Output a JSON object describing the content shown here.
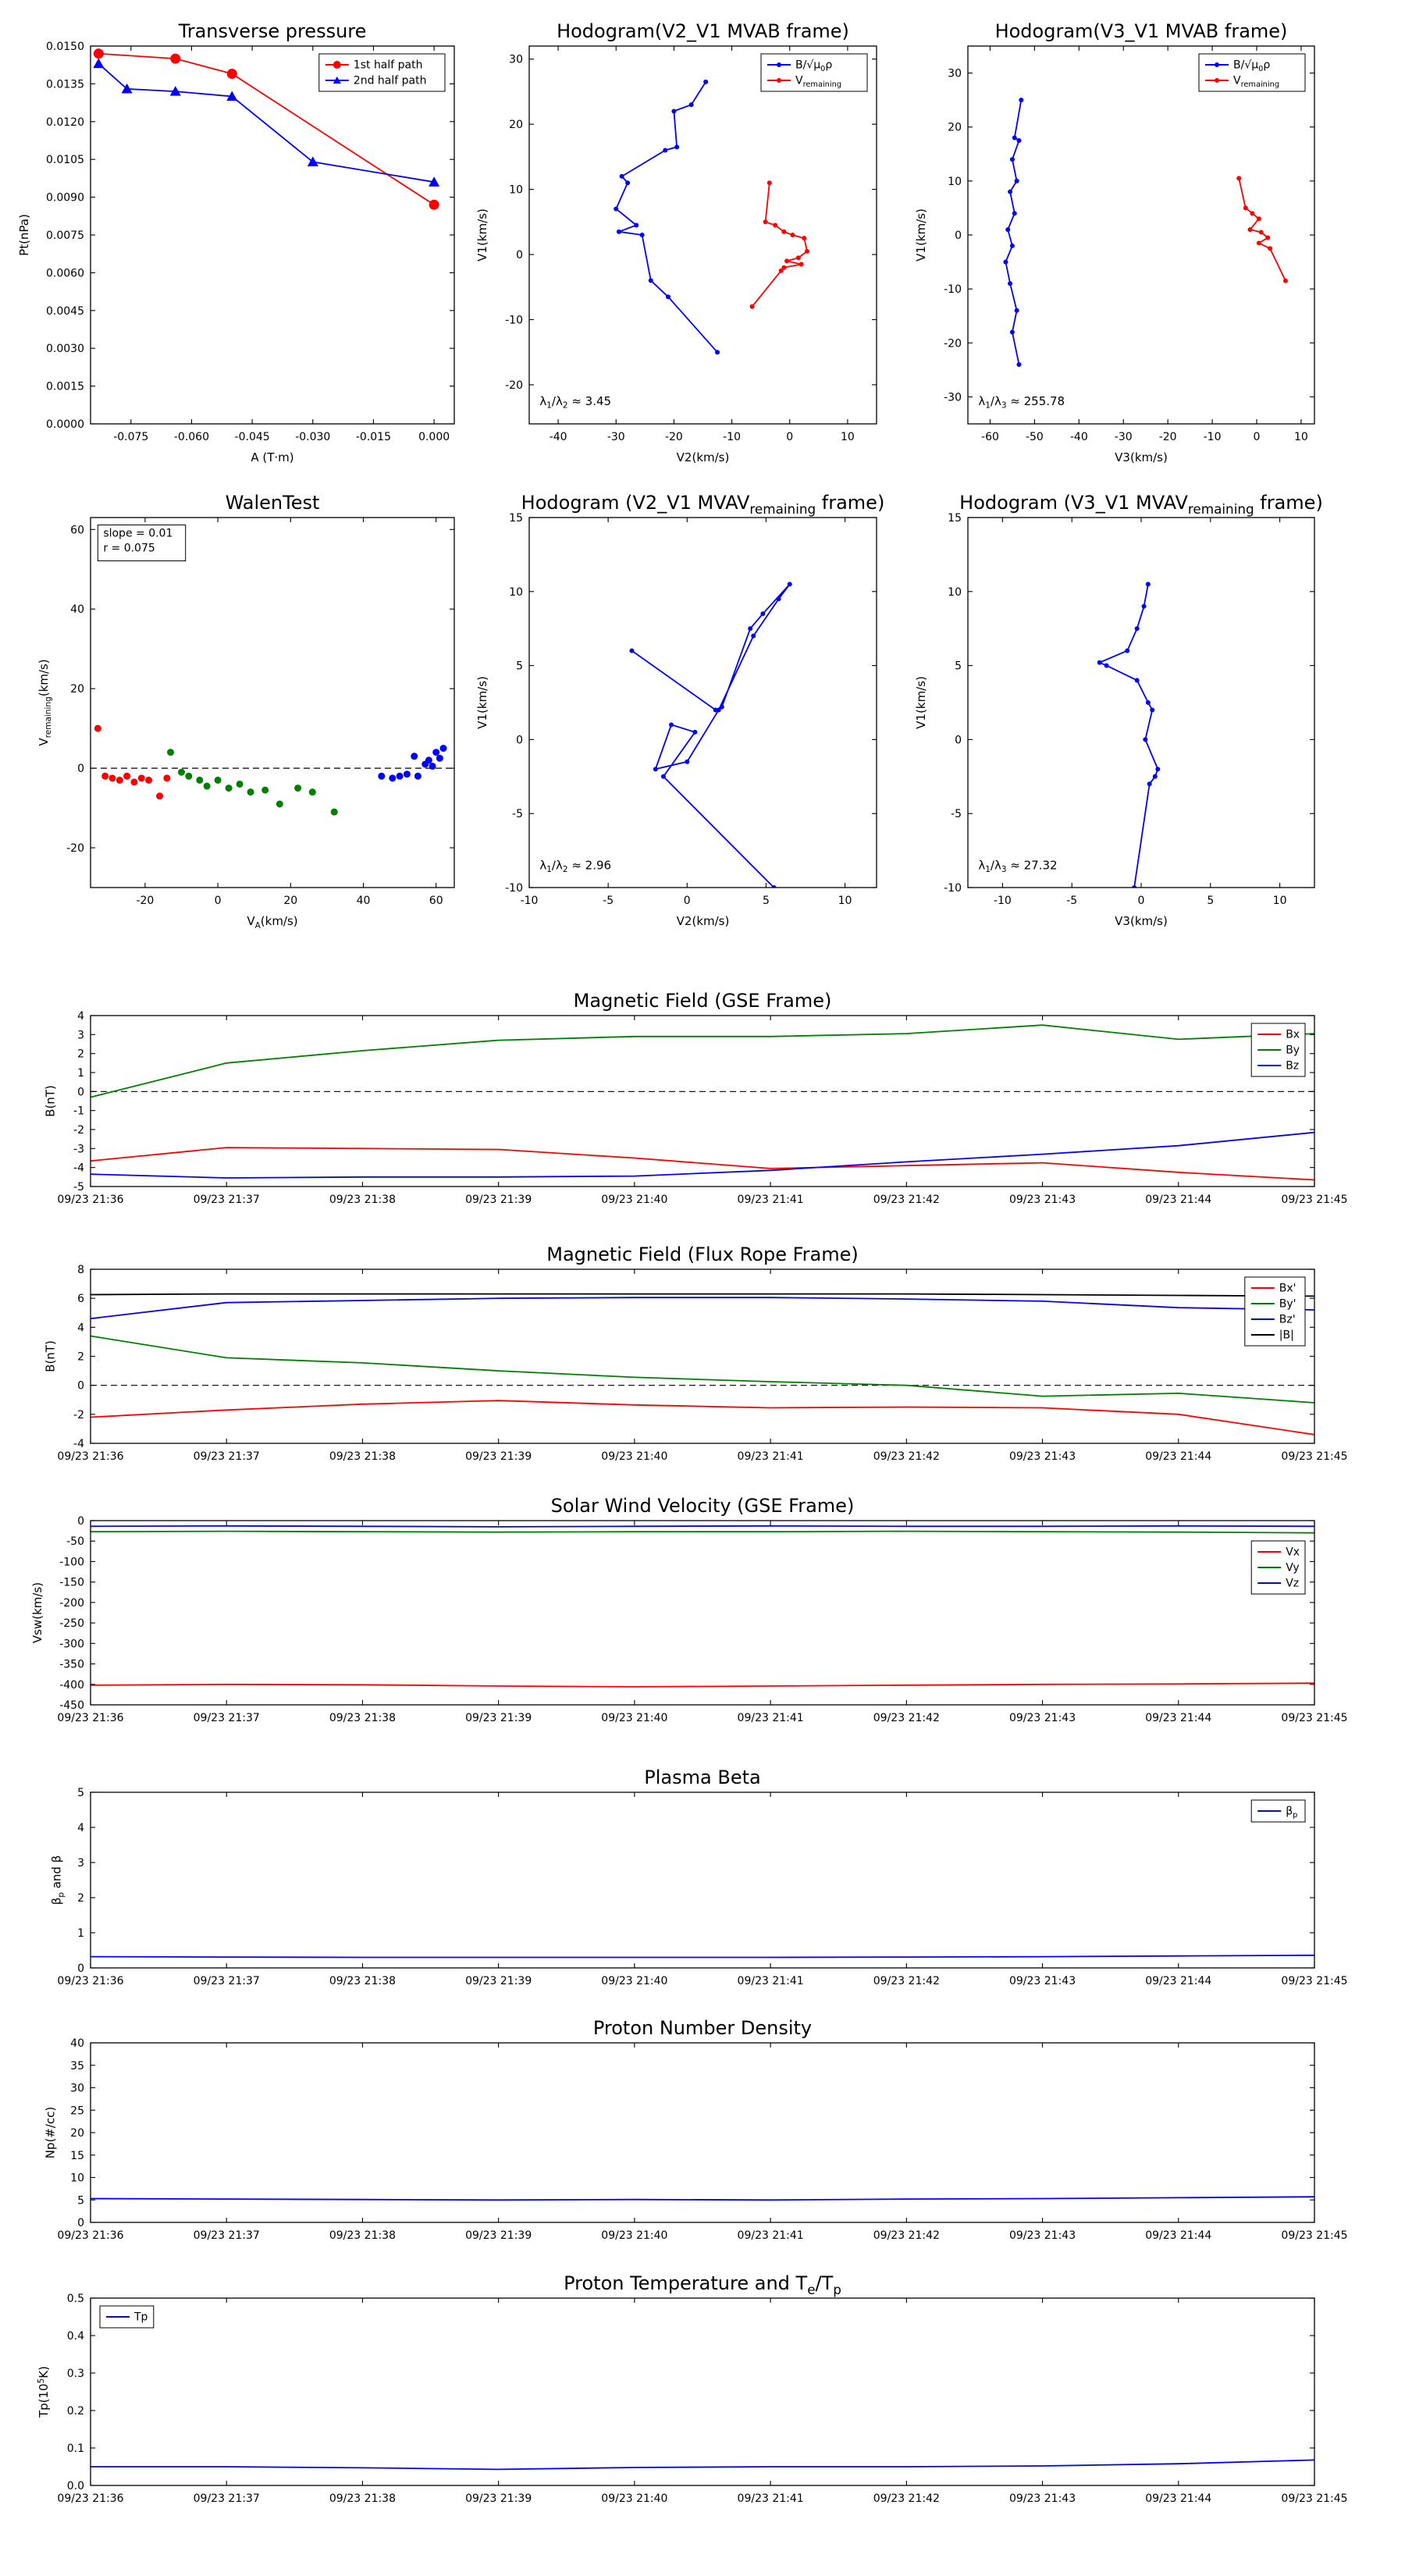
{
  "figure": {
    "background": "#ffffff",
    "time_labels": [
      "09/23 21:36",
      "09/23 21:37",
      "09/23 21:38",
      "09/23 21:39",
      "09/23 21:40",
      "09/23 21:41",
      "09/23 21:42",
      "09/23 21:43",
      "09/23 21:44",
      "09/23 21:45"
    ],
    "colors": {
      "red": "#ff0000",
      "green": "#008000",
      "blue": "#0000ff",
      "black": "#000000"
    }
  },
  "chart_data": [
    {
      "id": "transverse_pressure",
      "type": "line",
      "title": "Transverse pressure",
      "xlabel": "A (T·m)",
      "ylabel": "Pt(nPa)",
      "xlim": [
        -0.085,
        0.005
      ],
      "ylim": [
        0,
        0.015
      ],
      "xticks": [
        -0.075,
        -0.06,
        -0.045,
        -0.03,
        -0.015,
        0
      ],
      "xfmt": 3,
      "yticks": [
        0,
        0.0015,
        0.003,
        0.0045,
        0.006,
        0.0075,
        0.009,
        0.0105,
        0.012,
        0.0135,
        0.015
      ],
      "yfmt": 4,
      "legend": {
        "pos": "tr"
      },
      "series": [
        {
          "name": "1st half path",
          "color": "#ff0000",
          "marker": "circle",
          "msize": 6.5,
          "line": true,
          "x": [
            -0.083,
            -0.064,
            -0.05,
            0.0
          ],
          "y": [
            0.0147,
            0.0145,
            0.0139,
            0.0087
          ]
        },
        {
          "name": "2nd half path",
          "color": "#0000ff",
          "marker": "triangle",
          "msize": 7,
          "line": true,
          "x": [
            -0.083,
            -0.076,
            -0.064,
            -0.05,
            -0.03,
            0.0
          ],
          "y": [
            0.0143,
            0.0133,
            0.0132,
            0.013,
            0.0104,
            0.0096
          ]
        }
      ]
    },
    {
      "id": "hodogram_v2v1_mvab",
      "type": "line",
      "title": "Hodogram(V2_V1 MVAB frame)",
      "xlabel": "V2(km/s)",
      "ylabel": "V1(km/s)",
      "xlim": [
        -45,
        15
      ],
      "ylim": [
        -26,
        32
      ],
      "xticks": [
        -40,
        -30,
        -20,
        -10,
        0,
        10
      ],
      "xfmt": 0,
      "yticks": [
        -20,
        -10,
        0,
        10,
        20,
        30
      ],
      "yfmt": 0,
      "legend": {
        "pos": "tr"
      },
      "series": [
        {
          "name": "B/√μ_{0}ρ",
          "color": "#0000ff",
          "marker": "dot",
          "msize": 3,
          "line": true,
          "x": [
            -14.5,
            -17,
            -20,
            -19.5,
            -21.5,
            -29,
            -28,
            -30,
            -26.5,
            -29.5,
            -25.5,
            -24,
            -21,
            -12.5
          ],
          "y": [
            26.5,
            23,
            22,
            16.5,
            16,
            12,
            11,
            7,
            4.5,
            3.5,
            3,
            -4,
            -6.5,
            -15
          ]
        },
        {
          "name": "V_{remaining}",
          "color": "#ff0000",
          "marker": "dot",
          "msize": 3,
          "line": true,
          "x": [
            -3.5,
            -4.2,
            -2.5,
            -1,
            0.5,
            2.5,
            3,
            1.5,
            -0.5,
            2,
            -1,
            -1.5,
            -6.5
          ],
          "y": [
            11,
            5,
            4.5,
            3.5,
            3,
            2.5,
            0.5,
            -0.5,
            -1,
            -1.5,
            -2,
            -2.5,
            -8
          ]
        }
      ],
      "annotations": [
        {
          "text": "λ_{1}/λ_{2} ≈ 3.45",
          "fx": 0.03,
          "fy": 0.95
        }
      ]
    },
    {
      "id": "hodogram_v3v1_mvab",
      "type": "line",
      "title": "Hodogram(V3_V1 MVAB frame)",
      "xlabel": "V3(km/s)",
      "ylabel": "V1(km/s)",
      "xlim": [
        -65,
        13
      ],
      "ylim": [
        -35,
        35
      ],
      "xticks": [
        -60,
        -50,
        -40,
        -30,
        -20,
        -10,
        0,
        10
      ],
      "xfmt": 0,
      "yticks": [
        -30,
        -20,
        -10,
        0,
        10,
        20,
        30
      ],
      "yfmt": 0,
      "legend": {
        "pos": "tr"
      },
      "series": [
        {
          "name": "B/√μ_{0}ρ",
          "color": "#0000ff",
          "marker": "dot",
          "msize": 3,
          "line": true,
          "x": [
            -53,
            -54.5,
            -53.5,
            -55,
            -54,
            -55.5,
            -54.5,
            -56,
            -55,
            -56.5,
            -55.5,
            -54,
            -55,
            -53.5
          ],
          "y": [
            25,
            18,
            17.5,
            14,
            10,
            8,
            4,
            1,
            -2,
            -5,
            -9,
            -14,
            -18,
            -24
          ]
        },
        {
          "name": "V_{remaining}",
          "color": "#ff0000",
          "marker": "dot",
          "msize": 3,
          "line": true,
          "x": [
            -4,
            -2.5,
            -1,
            0.5,
            -1.5,
            1,
            2.5,
            0.5,
            3,
            6.5
          ],
          "y": [
            10.5,
            5,
            4,
            3,
            1,
            0.5,
            -0.5,
            -1.5,
            -2.5,
            -8.5
          ]
        }
      ],
      "annotations": [
        {
          "text": "λ_{1}/λ_{3} ≈ 255.78",
          "fx": 0.03,
          "fy": 0.95
        }
      ]
    },
    {
      "id": "walen_test",
      "type": "scatter",
      "title": "WalenTest",
      "xlabel": "V_{A}(km/s)",
      "ylabel": "V_{remaining}(km/s)",
      "xlim": [
        -35,
        65
      ],
      "ylim": [
        -30,
        63
      ],
      "xticks": [
        -20,
        0,
        20,
        40,
        60
      ],
      "xfmt": 0,
      "yticks": [
        -20,
        0,
        20,
        40,
        60
      ],
      "yfmt": 0,
      "zero_line": true,
      "series": [
        {
          "color": "#ff0000",
          "marker": "dot",
          "msize": 4.5,
          "line": false,
          "x": [
            -33,
            -31,
            -29,
            -27,
            -25,
            -23,
            -21,
            -19,
            -16,
            -14
          ],
          "y": [
            10,
            -2,
            -2.5,
            -3,
            -2,
            -3.5,
            -2.5,
            -3,
            -7,
            -2.5
          ]
        },
        {
          "color": "#008000",
          "marker": "dot",
          "msize": 4.5,
          "line": false,
          "x": [
            -13,
            -10,
            -8,
            -5,
            -3,
            0,
            3,
            6,
            9,
            13,
            17,
            22,
            26,
            32
          ],
          "y": [
            4,
            -1,
            -2,
            -3,
            -4.5,
            -3,
            -5,
            -4,
            -6,
            -5.5,
            -9,
            -5,
            -6,
            -11
          ]
        },
        {
          "color": "#0000ff",
          "marker": "dot",
          "msize": 4.5,
          "line": false,
          "x": [
            45,
            48,
            50,
            52,
            54,
            55,
            57,
            58,
            59,
            60,
            61,
            62
          ],
          "y": [
            -2,
            -2.5,
            -2,
            -1.5,
            3,
            -2,
            1,
            2,
            0.5,
            4,
            2.5,
            5
          ]
        }
      ],
      "annotations": [
        {
          "box": true,
          "lines": [
            "slope = 0.01",
            "r = 0.075"
          ],
          "fx": 0.02,
          "fy": 0.02
        }
      ]
    },
    {
      "id": "hodogram_v2v1_mvav",
      "type": "line",
      "title": "Hodogram (V2_V1 MVAV_{remaining} frame)",
      "xlabel": "V2(km/s)",
      "ylabel": "V1(km/s)",
      "xlim": [
        -10,
        12
      ],
      "ylim": [
        -10,
        15
      ],
      "xticks": [
        -10,
        -5,
        0,
        5,
        10
      ],
      "xfmt": 0,
      "yticks": [
        -10,
        -5,
        0,
        5,
        10,
        15
      ],
      "yfmt": 0,
      "series": [
        {
          "color": "#0000ff",
          "marker": "dot",
          "msize": 3,
          "line": true,
          "x": [
            -3.5,
            1.8,
            2.2,
            4.0,
            4.8,
            6.5,
            5.8,
            4.2,
            2.0,
            0.0,
            -2.0,
            -1.0,
            0.5,
            -1.5,
            5.5
          ],
          "y": [
            6,
            2,
            2.2,
            7.5,
            8.5,
            10.5,
            9.5,
            7,
            2,
            -1.5,
            -2,
            1,
            0.5,
            -2.5,
            -10
          ]
        }
      ],
      "annotations": [
        {
          "text": "λ_{1}/λ_{2} ≈ 2.96",
          "fx": 0.03,
          "fy": 0.95
        }
      ]
    },
    {
      "id": "hodogram_v3v1_mvav",
      "type": "line",
      "title": "Hodogram (V3_V1 MVAV_{remaining} frame)",
      "xlabel": "V3(km/s)",
      "ylabel": "V1(km/s)",
      "xlim": [
        -12.5,
        12.5
      ],
      "ylim": [
        -10,
        15
      ],
      "xticks": [
        -10,
        -5,
        0,
        5,
        10
      ],
      "xfmt": 0,
      "yticks": [
        -10,
        -5,
        0,
        5,
        10,
        15
      ],
      "yfmt": 0,
      "series": [
        {
          "color": "#0000ff",
          "marker": "dot",
          "msize": 3,
          "line": true,
          "x": [
            0.5,
            0.2,
            -0.3,
            -1,
            -3,
            -2.5,
            -0.3,
            0.5,
            0.8,
            0.3,
            1.2,
            1.0,
            0.6,
            -0.5
          ],
          "y": [
            10.5,
            9,
            7.5,
            6,
            5.2,
            5,
            4,
            2.5,
            2,
            0,
            -2,
            -2.5,
            -3,
            -10
          ]
        }
      ],
      "annotations": [
        {
          "text": "λ_{1}/λ_{3} ≈ 27.32",
          "fx": 0.03,
          "fy": 0.95
        }
      ]
    },
    {
      "id": "b_gse",
      "type": "line",
      "title": "Magnetic Field (GSE Frame)",
      "ylabel": "B(nT)",
      "xlim": [
        0,
        9
      ],
      "ylim": [
        -5,
        4
      ],
      "xticks": [
        0,
        1,
        2,
        3,
        4,
        5,
        6,
        7,
        8,
        9
      ],
      "xticklabels": "@time",
      "yticks": [
        -5,
        -4,
        -3,
        -2,
        -1,
        0,
        1,
        2,
        3,
        4
      ],
      "yfmt": 0,
      "zero_line": true,
      "x": [
        0,
        1,
        2,
        3,
        4,
        5,
        6,
        7,
        8,
        9
      ],
      "legend": {
        "pos": "tr"
      },
      "series": [
        {
          "name": "Bx",
          "color": "#ff0000",
          "line": true,
          "y": [
            -3.65,
            -2.95,
            -3.0,
            -3.05,
            -3.5,
            -4.05,
            -3.9,
            -3.75,
            -4.25,
            -4.65
          ]
        },
        {
          "name": "By",
          "color": "#008000",
          "line": true,
          "y": [
            -0.3,
            1.5,
            2.15,
            2.7,
            2.9,
            2.9,
            3.05,
            3.5,
            2.75,
            3.05
          ]
        },
        {
          "name": "Bz",
          "color": "#0000ff",
          "line": true,
          "y": [
            -4.35,
            -4.55,
            -4.5,
            -4.5,
            -4.45,
            -4.15,
            -3.7,
            -3.3,
            -2.85,
            -2.15
          ]
        }
      ]
    },
    {
      "id": "b_fluxrope",
      "type": "line",
      "title": "Magnetic Field (Flux Rope Frame)",
      "ylabel": "B(nT)",
      "xlim": [
        0,
        9
      ],
      "ylim": [
        -4,
        8
      ],
      "xticks": [
        0,
        1,
        2,
        3,
        4,
        5,
        6,
        7,
        8,
        9
      ],
      "xticklabels": "@time",
      "yticks": [
        -4,
        -2,
        0,
        2,
        4,
        6,
        8
      ],
      "yfmt": 0,
      "zero_line": true,
      "x": [
        0,
        1,
        2,
        3,
        4,
        5,
        6,
        7,
        8,
        9
      ],
      "legend": {
        "pos": "tr"
      },
      "series": [
        {
          "name": "Bx'",
          "color": "#ff0000",
          "line": true,
          "y": [
            -2.2,
            -1.7,
            -1.3,
            -1.05,
            -1.35,
            -1.55,
            -1.5,
            -1.55,
            -2.0,
            -3.4
          ]
        },
        {
          "name": "By'",
          "color": "#008000",
          "line": true,
          "y": [
            3.4,
            1.9,
            1.55,
            1.0,
            0.55,
            0.25,
            0.0,
            -0.75,
            -0.55,
            -1.2
          ]
        },
        {
          "name": "Bz'",
          "color": "#0000ff",
          "line": true,
          "y": [
            4.6,
            5.7,
            5.85,
            6.0,
            6.05,
            6.05,
            5.95,
            5.8,
            5.35,
            5.2
          ]
        },
        {
          "name": "|B|",
          "color": "#000000",
          "line": true,
          "y": [
            6.25,
            6.3,
            6.3,
            6.3,
            6.3,
            6.3,
            6.3,
            6.25,
            6.2,
            6.15
          ]
        }
      ]
    },
    {
      "id": "vsw_gse",
      "type": "line",
      "title": "Solar Wind Velocity (GSE Frame)",
      "ylabel": "Vsw(km/s)",
      "xlim": [
        0,
        9
      ],
      "ylim": [
        -450,
        0
      ],
      "xticks": [
        0,
        1,
        2,
        3,
        4,
        5,
        6,
        7,
        8,
        9
      ],
      "xticklabels": "@time",
      "yticks": [
        -450,
        -400,
        -350,
        -300,
        -250,
        -200,
        -150,
        -100,
        -50,
        0
      ],
      "yfmt": 0,
      "x": [
        0,
        1,
        2,
        3,
        4,
        5,
        6,
        7,
        8,
        9
      ],
      "legend": {
        "pos": "tr",
        "dy": 26
      },
      "series": [
        {
          "name": "Vx",
          "color": "#ff0000",
          "line": true,
          "y": [
            -402,
            -400,
            -401,
            -404,
            -406,
            -404,
            -402,
            -400,
            -399,
            -397
          ]
        },
        {
          "name": "Vy",
          "color": "#008000",
          "line": true,
          "y": [
            -27,
            -26,
            -27,
            -28,
            -27,
            -27,
            -26,
            -27,
            -28,
            -30
          ]
        },
        {
          "name": "Vz",
          "color": "#0000ff",
          "line": true,
          "y": [
            -14,
            -13,
            -14,
            -15,
            -14,
            -13,
            -14,
            -14,
            -13,
            -14
          ]
        }
      ]
    },
    {
      "id": "plasma_beta",
      "type": "line",
      "title": "Plasma Beta",
      "ylabel": "β_{p} and β",
      "xlim": [
        0,
        9
      ],
      "ylim": [
        0,
        5
      ],
      "xticks": [
        0,
        1,
        2,
        3,
        4,
        5,
        6,
        7,
        8,
        9
      ],
      "xticklabels": "@time",
      "yticks": [
        0,
        1,
        2,
        3,
        4,
        5
      ],
      "yfmt": 0,
      "x": [
        0,
        1,
        2,
        3,
        4,
        5,
        6,
        7,
        8,
        9
      ],
      "legend": {
        "pos": "tr"
      },
      "series": [
        {
          "name": "β_{p}",
          "color": "#0000ff",
          "line": true,
          "y": [
            0.32,
            0.31,
            0.3,
            0.3,
            0.3,
            0.3,
            0.31,
            0.32,
            0.34,
            0.36
          ]
        }
      ]
    },
    {
      "id": "proton_density",
      "type": "line",
      "title": "Proton Number Density",
      "ylabel": "Np(#/cc)",
      "xlim": [
        0,
        9
      ],
      "ylim": [
        0,
        40
      ],
      "xticks": [
        0,
        1,
        2,
        3,
        4,
        5,
        6,
        7,
        8,
        9
      ],
      "xticklabels": "@time",
      "yticks": [
        0,
        5,
        10,
        15,
        20,
        25,
        30,
        35,
        40
      ],
      "yfmt": 0,
      "x": [
        0,
        1,
        2,
        3,
        4,
        5,
        6,
        7,
        8,
        9
      ],
      "series": [
        {
          "color": "#0000ff",
          "line": true,
          "y": [
            5.3,
            5.2,
            5.1,
            5.0,
            5.1,
            5.0,
            5.2,
            5.3,
            5.5,
            5.7
          ]
        }
      ]
    },
    {
      "id": "proton_temp",
      "type": "line",
      "title": "Proton Temperature and T_{e}/T_{p}",
      "ylabel": "Tp(10^{5}K)",
      "xlim": [
        0,
        9
      ],
      "ylim": [
        0,
        0.5
      ],
      "xticks": [
        0,
        1,
        2,
        3,
        4,
        5,
        6,
        7,
        8,
        9
      ],
      "xticklabels": "@time",
      "yticks": [
        0,
        0.1,
        0.2,
        0.3,
        0.4,
        0.5
      ],
      "yfmt": 1,
      "x": [
        0,
        1,
        2,
        3,
        4,
        5,
        6,
        7,
        8,
        9
      ],
      "legend": {
        "pos": "tl"
      },
      "series": [
        {
          "name": "Tp",
          "color": "#0000ff",
          "line": true,
          "y": [
            0.05,
            0.05,
            0.047,
            0.043,
            0.048,
            0.05,
            0.05,
            0.052,
            0.058,
            0.068
          ]
        }
      ]
    }
  ]
}
